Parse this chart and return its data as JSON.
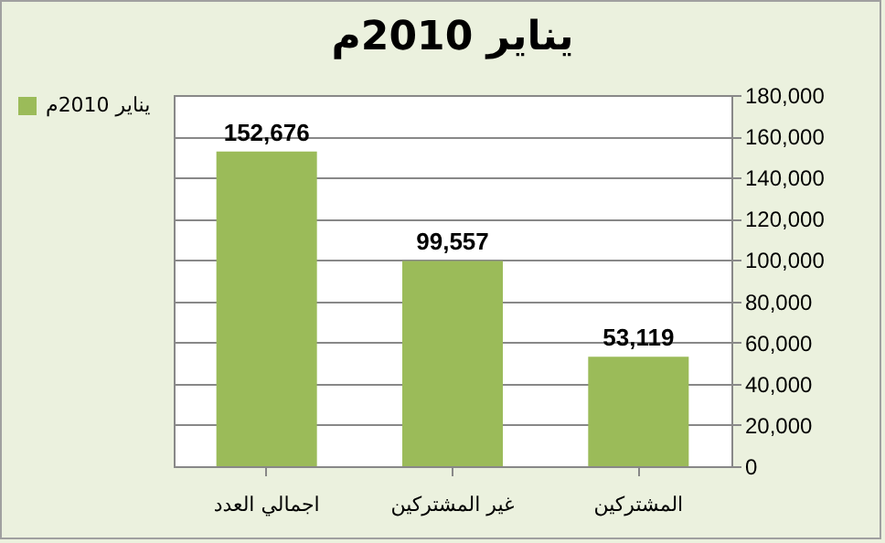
{
  "chart_data": {
    "type": "bar",
    "title": "يناير 2010م",
    "categories": [
      "اجمالي العدد",
      "غير المشتركين",
      "المشتركين"
    ],
    "series": [
      {
        "name": "يناير 2010م",
        "color": "#9bbb59",
        "values": [
          152676,
          99557,
          53119
        ],
        "value_labels": [
          "152,676",
          "99,557",
          "53,119"
        ]
      }
    ],
    "ylim": [
      0,
      180000
    ],
    "yticks": [
      0,
      {
        "value": 20000,
        "label": "20,000"
      },
      {
        "value": 40000,
        "label": "40,000"
      },
      {
        "value": 60000,
        "label": "60,000"
      },
      {
        "value": 80000,
        "label": "80,000"
      },
      {
        "value": 100000,
        "label": "100,000"
      },
      {
        "value": 120000,
        "label": "120,000"
      },
      {
        "value": 140000,
        "label": "140,000"
      },
      {
        "value": 160000,
        "label": "160,000"
      },
      {
        "value": 180000,
        "label": "180,000"
      }
    ],
    "grid": "y",
    "legend": "left"
  }
}
